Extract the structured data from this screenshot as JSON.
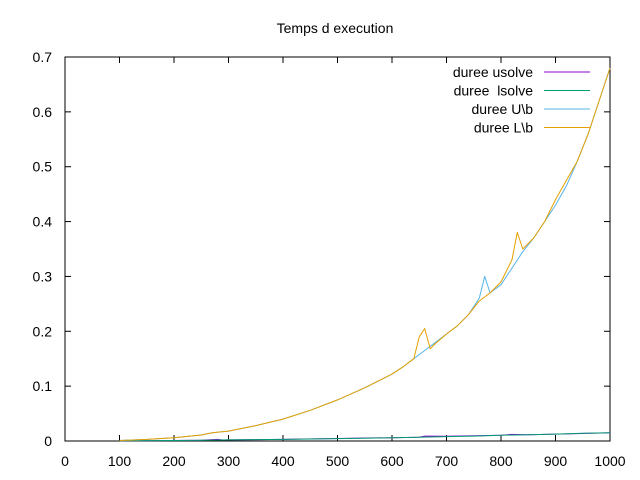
{
  "chart_data": {
    "type": "line",
    "title": "Temps d execution",
    "xlabel": "",
    "ylabel": "",
    "xlim": [
      0,
      1000
    ],
    "ylim": [
      0,
      0.7
    ],
    "x_ticks": [
      0,
      100,
      200,
      300,
      400,
      500,
      600,
      700,
      800,
      900,
      1000
    ],
    "y_ticks": [
      0,
      0.1,
      0.2,
      0.3,
      0.4,
      0.5,
      0.6,
      0.7
    ],
    "x_tick_labels": [
      "0",
      "100",
      "200",
      "300",
      "400",
      "500",
      "600",
      "700",
      "800",
      "900",
      "1000"
    ],
    "y_tick_labels": [
      "0",
      "0.1",
      "0.2",
      "0.3",
      "0.4",
      "0.5",
      "0.6",
      "0.7"
    ],
    "grid": false,
    "legend_position": "top-right",
    "series": [
      {
        "name": "duree usolve",
        "color": "#9400d3",
        "x": [
          100,
          150,
          200,
          250,
          280,
          290,
          300,
          350,
          400,
          450,
          500,
          550,
          600,
          650,
          660,
          700,
          750,
          800,
          820,
          850,
          900,
          940,
          1000
        ],
        "y": [
          0.0005,
          0.0008,
          0.001,
          0.0015,
          0.003,
          0.0018,
          0.002,
          0.0025,
          0.003,
          0.0038,
          0.0045,
          0.0055,
          0.006,
          0.007,
          0.009,
          0.0085,
          0.0095,
          0.0105,
          0.012,
          0.0115,
          0.0125,
          0.0135,
          0.015
        ]
      },
      {
        "name": "duree  lsolve",
        "color": "#009e73",
        "x": [
          100,
          150,
          200,
          250,
          300,
          350,
          400,
          450,
          500,
          550,
          600,
          650,
          700,
          750,
          800,
          850,
          900,
          950,
          1000
        ],
        "y": [
          0.0005,
          0.0008,
          0.001,
          0.0015,
          0.002,
          0.0025,
          0.003,
          0.0036,
          0.0043,
          0.005,
          0.006,
          0.007,
          0.008,
          0.009,
          0.0105,
          0.0115,
          0.0125,
          0.014,
          0.015
        ]
      },
      {
        "name": "duree U\\b",
        "color": "#56b4e9",
        "x": [
          100,
          150,
          200,
          250,
          270,
          300,
          350,
          400,
          450,
          500,
          550,
          600,
          620,
          640,
          660,
          680,
          700,
          720,
          740,
          760,
          770,
          780,
          800,
          820,
          830,
          840,
          860,
          880,
          900,
          920,
          940,
          960,
          980,
          1000
        ],
        "y": [
          0.001,
          0.003,
          0.006,
          0.011,
          0.015,
          0.018,
          0.028,
          0.04,
          0.056,
          0.075,
          0.097,
          0.122,
          0.135,
          0.15,
          0.165,
          0.18,
          0.195,
          0.21,
          0.23,
          0.26,
          0.3,
          0.27,
          0.285,
          0.315,
          0.33,
          0.345,
          0.37,
          0.4,
          0.43,
          0.465,
          0.51,
          0.56,
          0.62,
          0.68
        ]
      },
      {
        "name": "duree L\\b",
        "color": "#e69f00",
        "x": [
          100,
          150,
          200,
          250,
          270,
          300,
          350,
          400,
          450,
          500,
          550,
          600,
          620,
          640,
          650,
          660,
          670,
          680,
          700,
          720,
          740,
          760,
          780,
          800,
          820,
          830,
          840,
          860,
          880,
          900,
          920,
          940,
          960,
          980,
          1000
        ],
        "y": [
          0.001,
          0.003,
          0.006,
          0.011,
          0.015,
          0.018,
          0.028,
          0.04,
          0.056,
          0.075,
          0.097,
          0.122,
          0.135,
          0.15,
          0.19,
          0.205,
          0.168,
          0.178,
          0.195,
          0.21,
          0.23,
          0.255,
          0.27,
          0.29,
          0.33,
          0.38,
          0.35,
          0.37,
          0.4,
          0.44,
          0.475,
          0.51,
          0.56,
          0.62,
          0.68
        ]
      }
    ]
  }
}
